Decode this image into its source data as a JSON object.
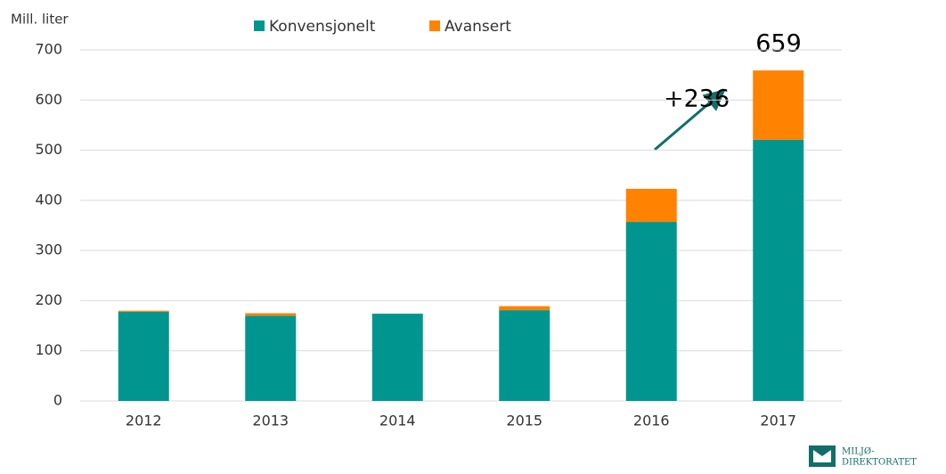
{
  "chart_data": {
    "type": "stacked_bar",
    "y_label": "Mill. liter",
    "categories": [
      "2012",
      "2013",
      "2014",
      "2015",
      "2016",
      "2017"
    ],
    "series": [
      {
        "name": "Konvensjonelt",
        "color": "#00968f",
        "values": [
          178,
          170,
          174,
          181,
          357,
          521
        ]
      },
      {
        "name": "Avansert",
        "color": "#ff8200",
        "values": [
          2,
          5,
          0,
          8,
          66,
          138
        ]
      }
    ],
    "ylim": [
      0,
      700
    ],
    "yticks": [
      0,
      100,
      200,
      300,
      400,
      500,
      600,
      700
    ],
    "grid": true,
    "annotations": [
      "+236",
      "659"
    ]
  },
  "logo": [
    "MILJØ-",
    "DIREKTORATET"
  ]
}
